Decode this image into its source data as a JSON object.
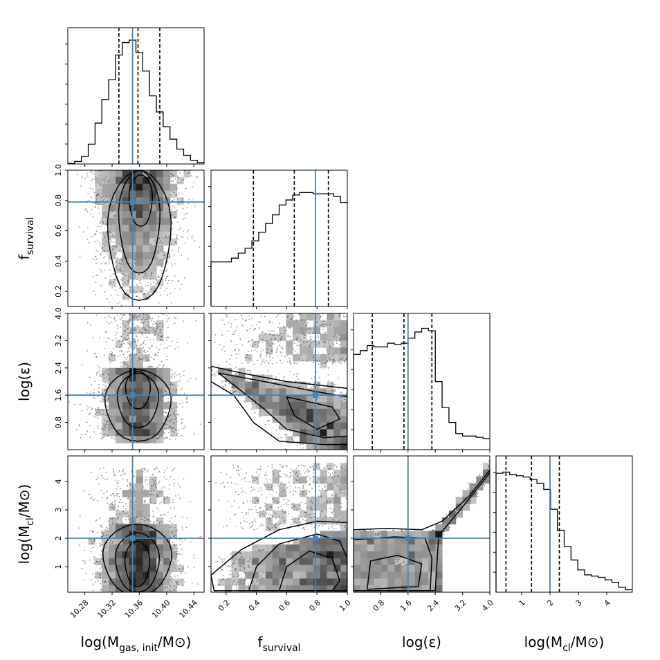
{
  "chart_data": {
    "type": "corner",
    "parameters": [
      {
        "key": "mgas",
        "label_main": "log(M",
        "label_sub": "gas, init",
        "label_tail": "/M⊙)",
        "range": [
          10.255,
          10.455
        ],
        "ticks": [
          "10.28",
          "10.32",
          "10.36",
          "10.40",
          "10.44"
        ],
        "truth": 10.35,
        "quantiles": [
          10.33,
          10.358,
          10.39
        ]
      },
      {
        "key": "fsurv",
        "label_main": "f",
        "label_sub": "survival",
        "label_tail": "",
        "range": [
          0.1,
          1.0
        ],
        "ticks": [
          "0.2",
          "0.4",
          "0.6",
          "0.8",
          "1.0"
        ],
        "y_ticks": [
          "0.2",
          "0.4",
          "0.6",
          "0.8",
          "1.0"
        ],
        "truth": 0.79,
        "quantiles": [
          0.38,
          0.65,
          0.875
        ]
      },
      {
        "key": "eps",
        "label_main": "log(ε)",
        "label_sub": "",
        "label_tail": "",
        "range": [
          0.0,
          4.0
        ],
        "ticks": [
          "0.8",
          "1.6",
          "2.4",
          "3.2",
          "4.0"
        ],
        "y_ticks": [
          "0.8",
          "1.6",
          "2.4",
          "3.2",
          "4.0"
        ],
        "truth": 1.6,
        "quantiles": [
          0.55,
          1.48,
          2.3
        ]
      },
      {
        "key": "mcl",
        "label_main": "log(M",
        "label_sub": "cl",
        "label_tail": "/M⊙)",
        "range": [
          0.1,
          4.9
        ],
        "ticks": [
          "1",
          "2",
          "3",
          "4"
        ],
        "y_ticks": [
          "1",
          "2",
          "3",
          "4"
        ],
        "truth": 2.0,
        "quantiles": [
          0.45,
          1.35,
          2.33
        ]
      }
    ],
    "histograms": [
      {
        "param": "mgas",
        "bins": 20,
        "values": [
          0.005,
          0.02,
          0.06,
          0.16,
          0.33,
          0.52,
          0.68,
          0.88,
          0.98,
          1.0,
          0.9,
          0.75,
          0.55,
          0.42,
          0.3,
          0.2,
          0.12,
          0.07,
          0.03,
          0.01
        ]
      },
      {
        "param": "fsurv",
        "bins": 20,
        "values": [
          0.36,
          0.36,
          0.36,
          0.39,
          0.43,
          0.47,
          0.53,
          0.6,
          0.67,
          0.74,
          0.82,
          0.86,
          0.9,
          0.92,
          0.92,
          0.91,
          0.91,
          0.91,
          0.89,
          0.84
        ]
      },
      {
        "param": "eps",
        "bins": 20,
        "values": [
          0.77,
          0.8,
          0.84,
          0.83,
          0.83,
          0.86,
          0.85,
          0.86,
          0.9,
          0.95,
          0.98,
          0.96,
          0.55,
          0.34,
          0.22,
          0.13,
          0.11,
          0.11,
          0.1,
          0.09
        ]
      },
      {
        "param": "mcl",
        "bins": 20,
        "values": [
          0.96,
          0.97,
          0.95,
          0.94,
          0.93,
          0.91,
          0.88,
          0.83,
          0.67,
          0.5,
          0.37,
          0.26,
          0.18,
          0.14,
          0.13,
          0.12,
          0.1,
          0.08,
          0.04,
          0.02
        ]
      }
    ],
    "truth_color": "#4682b4",
    "contour_color": "#000000",
    "quantile_style": "dashed"
  }
}
